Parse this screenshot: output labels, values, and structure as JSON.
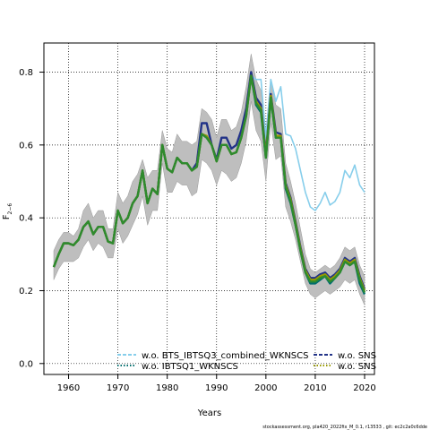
{
  "chart_data": {
    "type": "line",
    "title": "",
    "xlabel": "Years",
    "ylabel_main": "F",
    "ylabel_sub": "2−6",
    "xlim": [
      1955,
      2022
    ],
    "ylim": [
      -0.03,
      0.88
    ],
    "xticks": [
      1960,
      1970,
      1980,
      1990,
      2000,
      2010,
      2020
    ],
    "yticks": [
      0.0,
      0.2,
      0.4,
      0.6,
      0.8
    ],
    "ytick_labels": [
      "0.0",
      "0.2",
      "0.4",
      "0.6",
      "0.8"
    ],
    "grid": true,
    "legend_position": "bottom",
    "x": [
      1957,
      1958,
      1959,
      1960,
      1961,
      1962,
      1963,
      1964,
      1965,
      1966,
      1967,
      1968,
      1969,
      1970,
      1971,
      1972,
      1973,
      1974,
      1975,
      1976,
      1977,
      1978,
      1979,
      1980,
      1981,
      1982,
      1983,
      1984,
      1985,
      1986,
      1987,
      1988,
      1989,
      1990,
      1991,
      1992,
      1993,
      1994,
      1995,
      1996,
      1997,
      1998,
      1999,
      2000,
      2001,
      2002,
      2003,
      2004,
      2005,
      2006,
      2007,
      2008,
      2009,
      2010,
      2011,
      2012,
      2013,
      2014,
      2015,
      2016,
      2017,
      2018,
      2019,
      2020
    ],
    "band": {
      "color": "#bebebe",
      "upper": [
        0.31,
        0.34,
        0.36,
        0.36,
        0.35,
        0.37,
        0.42,
        0.44,
        0.4,
        0.42,
        0.42,
        0.37,
        0.37,
        0.47,
        0.44,
        0.46,
        0.5,
        0.52,
        0.56,
        0.51,
        0.53,
        0.53,
        0.64,
        0.59,
        0.58,
        0.63,
        0.61,
        0.61,
        0.6,
        0.61,
        0.7,
        0.69,
        0.67,
        0.62,
        0.67,
        0.67,
        0.64,
        0.65,
        0.69,
        0.76,
        0.85,
        0.78,
        0.75,
        0.64,
        0.78,
        0.71,
        0.7,
        0.55,
        0.5,
        0.44,
        0.37,
        0.3,
        0.26,
        0.25,
        0.26,
        0.27,
        0.26,
        0.27,
        0.29,
        0.32,
        0.31,
        0.32,
        0.27,
        0.24
      ],
      "lower": [
        0.23,
        0.26,
        0.28,
        0.28,
        0.28,
        0.29,
        0.32,
        0.34,
        0.31,
        0.33,
        0.32,
        0.29,
        0.29,
        0.37,
        0.33,
        0.35,
        0.38,
        0.41,
        0.46,
        0.38,
        0.42,
        0.42,
        0.55,
        0.47,
        0.47,
        0.5,
        0.49,
        0.49,
        0.46,
        0.47,
        0.56,
        0.55,
        0.53,
        0.49,
        0.53,
        0.52,
        0.5,
        0.51,
        0.55,
        0.61,
        0.72,
        0.64,
        0.61,
        0.5,
        0.66,
        0.56,
        0.57,
        0.43,
        0.39,
        0.34,
        0.28,
        0.22,
        0.19,
        0.18,
        0.19,
        0.2,
        0.19,
        0.2,
        0.21,
        0.23,
        0.22,
        0.23,
        0.19,
        0.16
      ]
    },
    "series": [
      {
        "name": "w.o. BTS_IBTSQ3_combined_WKNSCS",
        "color": "#87ceeb",
        "values": [
          0.265,
          0.3,
          0.33,
          0.33,
          0.325,
          0.34,
          0.375,
          0.39,
          0.355,
          0.375,
          0.375,
          0.335,
          0.33,
          0.42,
          0.385,
          0.4,
          0.44,
          0.46,
          0.53,
          0.44,
          0.48,
          0.465,
          0.6,
          0.535,
          0.525,
          0.565,
          0.55,
          0.55,
          0.53,
          0.54,
          0.63,
          0.62,
          0.6,
          0.555,
          0.6,
          0.6,
          0.575,
          0.58,
          0.62,
          0.68,
          0.79,
          0.78,
          0.78,
          0.62,
          0.78,
          0.72,
          0.76,
          0.63,
          0.625,
          0.59,
          0.53,
          0.47,
          0.43,
          0.42,
          0.44,
          0.47,
          0.435,
          0.445,
          0.47,
          0.53,
          0.51,
          0.545,
          0.49,
          0.47
        ]
      },
      {
        "name": "w.o. IBTSQ1_WKNSCS",
        "color": "#006d6d",
        "values": [
          0.265,
          0.3,
          0.33,
          0.33,
          0.325,
          0.34,
          0.375,
          0.39,
          0.355,
          0.375,
          0.375,
          0.335,
          0.33,
          0.42,
          0.385,
          0.4,
          0.44,
          0.46,
          0.53,
          0.44,
          0.48,
          0.465,
          0.6,
          0.535,
          0.525,
          0.565,
          0.55,
          0.55,
          0.53,
          0.54,
          0.63,
          0.62,
          0.6,
          0.555,
          0.6,
          0.6,
          0.575,
          0.58,
          0.62,
          0.68,
          0.79,
          0.71,
          0.69,
          0.565,
          0.73,
          0.62,
          0.625,
          0.48,
          0.44,
          0.38,
          0.31,
          0.25,
          0.22,
          0.22,
          0.23,
          0.24,
          0.22,
          0.235,
          0.25,
          0.28,
          0.27,
          0.28,
          0.22,
          0.19
        ]
      },
      {
        "name": "w.o. SNS",
        "color": "#223388",
        "values": [
          0.265,
          0.3,
          0.33,
          0.33,
          0.325,
          0.34,
          0.375,
          0.39,
          0.355,
          0.375,
          0.375,
          0.335,
          0.33,
          0.42,
          0.385,
          0.4,
          0.44,
          0.46,
          0.53,
          0.44,
          0.48,
          0.465,
          0.6,
          0.535,
          0.525,
          0.565,
          0.55,
          0.55,
          0.53,
          0.55,
          0.66,
          0.66,
          0.6,
          0.56,
          0.62,
          0.62,
          0.59,
          0.6,
          0.64,
          0.7,
          0.8,
          0.73,
          0.71,
          0.575,
          0.74,
          0.635,
          0.63,
          0.495,
          0.455,
          0.39,
          0.32,
          0.26,
          0.235,
          0.235,
          0.245,
          0.25,
          0.235,
          0.245,
          0.26,
          0.29,
          0.28,
          0.29,
          0.24,
          0.205
        ]
      },
      {
        "name": "w.o. SNS",
        "color": "#999900",
        "values": [
          0.265,
          0.3,
          0.33,
          0.33,
          0.325,
          0.34,
          0.375,
          0.39,
          0.355,
          0.375,
          0.375,
          0.335,
          0.33,
          0.42,
          0.385,
          0.4,
          0.44,
          0.46,
          0.53,
          0.44,
          0.48,
          0.465,
          0.6,
          0.535,
          0.525,
          0.565,
          0.55,
          0.55,
          0.53,
          0.54,
          0.63,
          0.625,
          0.6,
          0.555,
          0.6,
          0.6,
          0.575,
          0.58,
          0.62,
          0.68,
          0.79,
          0.72,
          0.7,
          0.57,
          0.735,
          0.625,
          0.625,
          0.49,
          0.45,
          0.385,
          0.315,
          0.255,
          0.23,
          0.23,
          0.24,
          0.245,
          0.23,
          0.24,
          0.255,
          0.285,
          0.275,
          0.285,
          0.235,
          0.2
        ]
      },
      {
        "name": "",
        "color": "#2e8b2e",
        "values": [
          0.265,
          0.3,
          0.33,
          0.33,
          0.325,
          0.34,
          0.375,
          0.39,
          0.355,
          0.375,
          0.375,
          0.335,
          0.33,
          0.42,
          0.385,
          0.4,
          0.44,
          0.46,
          0.53,
          0.44,
          0.48,
          0.465,
          0.6,
          0.535,
          0.525,
          0.565,
          0.55,
          0.55,
          0.53,
          0.54,
          0.63,
          0.62,
          0.6,
          0.555,
          0.6,
          0.6,
          0.575,
          0.58,
          0.62,
          0.68,
          0.79,
          0.715,
          0.695,
          0.565,
          0.73,
          0.62,
          0.62,
          0.485,
          0.445,
          0.38,
          0.31,
          0.25,
          0.225,
          0.225,
          0.235,
          0.24,
          0.225,
          0.235,
          0.25,
          0.28,
          0.27,
          0.28,
          0.23,
          0.195
        ]
      }
    ],
    "legend": [
      {
        "label": "w.o. BTS_IBTSQ3_combined_WKNSCS",
        "color": "#87ceeb",
        "style": "dashed"
      },
      {
        "label": "w.o. IBTSQ1_WKNSCS",
        "color": "#006d6d",
        "style": "dotted"
      },
      {
        "label": "w.o. SNS",
        "color": "#223388",
        "style": "dashed"
      },
      {
        "label": "w.o. SNS",
        "color": "#999900",
        "style": "dotted"
      }
    ]
  },
  "footer": "stockassessment.org, pla420_2022fix_M_0.1, r13533 ,  git: ec2c2a0c6dde"
}
